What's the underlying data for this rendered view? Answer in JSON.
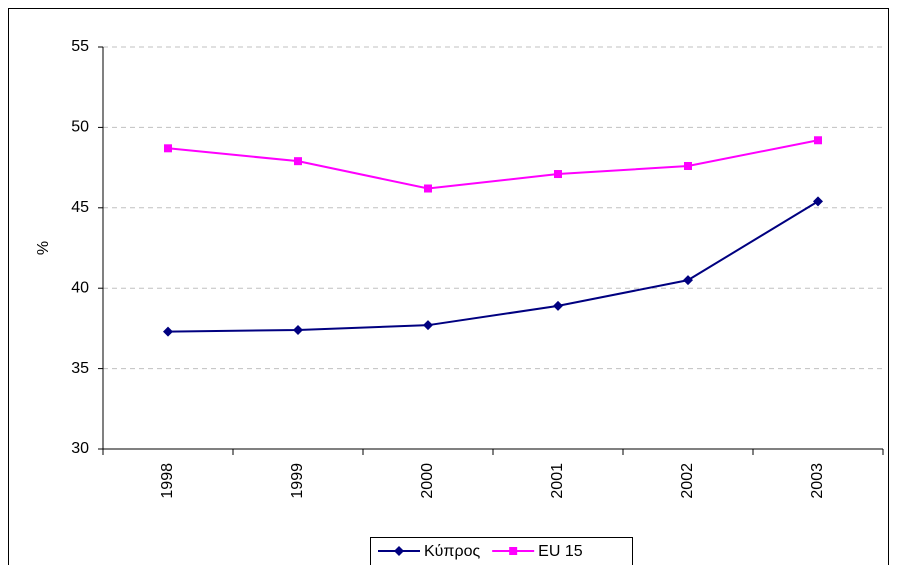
{
  "chart_data": {
    "type": "line",
    "y_label": "%",
    "categories": [
      "1998",
      "1999",
      "2000",
      "2001",
      "2002",
      "2003"
    ],
    "series": [
      {
        "name": "Κύπρος",
        "color": "#000080",
        "marker": "diamond",
        "values": [
          37.3,
          37.4,
          37.7,
          38.9,
          40.5,
          45.4
        ]
      },
      {
        "name": "EU 15",
        "color": "#ff00ff",
        "marker": "square",
        "values": [
          48.7,
          47.9,
          46.2,
          47.1,
          47.6,
          49.2
        ]
      }
    ],
    "ylim": [
      30,
      55
    ],
    "yticks": [
      30,
      35,
      40,
      45,
      50,
      55
    ],
    "grid": true,
    "legend": "bottom"
  }
}
